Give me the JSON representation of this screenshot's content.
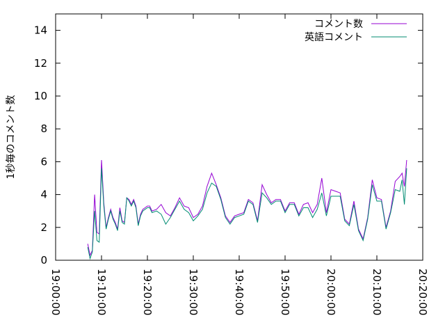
{
  "chart_data": {
    "type": "line",
    "ylabel": "1秒毎のコメント数",
    "xlabel": "",
    "title": "",
    "ylim": [
      0,
      15
    ],
    "y_ticks": [
      0,
      2,
      4,
      6,
      8,
      10,
      12,
      14
    ],
    "x_range": [
      "19:00:00",
      "20:20:00"
    ],
    "x_ticks": [
      "19:00:00",
      "19:10:00",
      "19:20:00",
      "19:30:00",
      "19:40:00",
      "19:50:00",
      "20:00:00",
      "20:10:00",
      "20:20:00"
    ],
    "x_tick_rotation": 90,
    "legend_position": "top-right",
    "grid": false,
    "series": [
      {
        "name": "コメント数",
        "color": "#9400d3",
        "x": [
          "19:07:00",
          "19:07:30",
          "19:08:00",
          "19:08:30",
          "19:09:00",
          "19:09:30",
          "19:10:00",
          "19:10:30",
          "19:11:00",
          "19:11:30",
          "19:12:00",
          "19:12:30",
          "19:13:00",
          "19:13:30",
          "19:14:00",
          "19:14:30",
          "19:15:00",
          "19:15:30",
          "19:16:00",
          "19:16:30",
          "19:17:00",
          "19:17:30",
          "19:18:00",
          "19:18:30",
          "19:19:00",
          "19:19:30",
          "19:20:00",
          "19:20:30",
          "19:21:00",
          "19:22:00",
          "19:23:00",
          "19:24:00",
          "19:25:00",
          "19:26:00",
          "19:27:00",
          "19:28:00",
          "19:29:00",
          "19:30:00",
          "19:31:00",
          "19:32:00",
          "19:33:00",
          "19:34:00",
          "19:35:00",
          "19:36:00",
          "19:37:00",
          "19:38:00",
          "19:39:00",
          "19:40:00",
          "19:41:00",
          "19:42:00",
          "19:43:00",
          "19:44:00",
          "19:45:00",
          "19:46:00",
          "19:47:00",
          "19:48:00",
          "19:49:00",
          "19:50:00",
          "19:51:00",
          "19:52:00",
          "19:53:00",
          "19:54:00",
          "19:55:00",
          "19:56:00",
          "19:57:00",
          "19:58:00",
          "19:59:00",
          "20:00:00",
          "20:01:00",
          "20:02:00",
          "20:03:00",
          "20:04:00",
          "20:05:00",
          "20:06:00",
          "20:07:00",
          "20:08:00",
          "20:09:00",
          "20:10:00",
          "20:11:00",
          "20:12:00",
          "20:13:00",
          "20:14:00",
          "20:15:00",
          "20:15:30",
          "20:16:00",
          "20:16:30"
        ],
        "values": [
          1.0,
          0.3,
          0.6,
          4.0,
          1.7,
          1.6,
          6.1,
          3.5,
          2.0,
          2.6,
          3.1,
          2.6,
          2.3,
          1.9,
          3.2,
          2.4,
          2.3,
          3.8,
          3.7,
          3.4,
          3.7,
          3.3,
          2.2,
          2.8,
          3.1,
          3.2,
          3.3,
          3.3,
          3.0,
          3.1,
          3.4,
          2.9,
          2.7,
          3.2,
          3.8,
          3.3,
          3.2,
          2.6,
          2.8,
          3.3,
          4.5,
          5.3,
          4.6,
          3.8,
          2.7,
          2.3,
          2.7,
          2.8,
          2.9,
          3.7,
          3.5,
          2.4,
          4.6,
          4.0,
          3.5,
          3.7,
          3.7,
          3.0,
          3.5,
          3.5,
          2.8,
          3.4,
          3.5,
          2.9,
          3.4,
          5.0,
          2.9,
          4.3,
          4.2,
          4.1,
          2.5,
          2.2,
          3.6,
          1.9,
          1.3,
          2.6,
          4.9,
          3.8,
          3.7,
          2.0,
          3.0,
          4.8,
          5.1,
          5.3,
          4.5,
          6.1
        ]
      },
      {
        "name": "英語コメント",
        "color": "#008b72",
        "x": [
          "19:07:00",
          "19:07:30",
          "19:08:00",
          "19:08:30",
          "19:09:00",
          "19:09:30",
          "19:10:00",
          "19:10:30",
          "19:11:00",
          "19:11:30",
          "19:12:00",
          "19:12:30",
          "19:13:00",
          "19:13:30",
          "19:14:00",
          "19:14:30",
          "19:15:00",
          "19:15:30",
          "19:16:00",
          "19:16:30",
          "19:17:00",
          "19:17:30",
          "19:18:00",
          "19:18:30",
          "19:19:00",
          "19:19:30",
          "19:20:00",
          "19:20:30",
          "19:21:00",
          "19:22:00",
          "19:23:00",
          "19:24:00",
          "19:25:00",
          "19:26:00",
          "19:27:00",
          "19:28:00",
          "19:29:00",
          "19:30:00",
          "19:31:00",
          "19:32:00",
          "19:33:00",
          "19:34:00",
          "19:35:00",
          "19:36:00",
          "19:37:00",
          "19:38:00",
          "19:39:00",
          "19:40:00",
          "19:41:00",
          "19:42:00",
          "19:43:00",
          "19:44:00",
          "19:45:00",
          "19:46:00",
          "19:47:00",
          "19:48:00",
          "19:49:00",
          "19:50:00",
          "19:51:00",
          "19:52:00",
          "19:53:00",
          "19:54:00",
          "19:55:00",
          "19:56:00",
          "19:57:00",
          "19:58:00",
          "19:59:00",
          "20:00:00",
          "20:01:00",
          "20:02:00",
          "20:03:00",
          "20:04:00",
          "20:05:00",
          "20:06:00",
          "20:07:00",
          "20:08:00",
          "20:09:00",
          "20:10:00",
          "20:11:00",
          "20:12:00",
          "20:13:00",
          "20:14:00",
          "20:15:00",
          "20:15:30",
          "20:16:00",
          "20:16:30"
        ],
        "values": [
          0.8,
          0.1,
          0.5,
          3.0,
          1.2,
          1.1,
          5.6,
          3.3,
          1.9,
          2.5,
          3.0,
          2.5,
          2.2,
          1.8,
          3.0,
          2.3,
          2.2,
          3.8,
          3.6,
          3.3,
          3.6,
          3.2,
          2.1,
          2.7,
          3.0,
          3.1,
          3.2,
          3.2,
          2.9,
          3.0,
          2.8,
          2.2,
          2.6,
          3.1,
          3.6,
          3.1,
          2.9,
          2.4,
          2.7,
          3.1,
          4.1,
          4.7,
          4.5,
          3.7,
          2.6,
          2.2,
          2.6,
          2.7,
          2.8,
          3.6,
          3.4,
          2.3,
          4.1,
          3.8,
          3.4,
          3.6,
          3.6,
          2.9,
          3.4,
          3.4,
          2.7,
          3.2,
          3.2,
          2.6,
          3.1,
          4.1,
          2.7,
          3.9,
          3.9,
          3.9,
          2.4,
          2.1,
          3.4,
          1.8,
          1.2,
          2.5,
          4.6,
          3.6,
          3.6,
          1.9,
          2.9,
          4.3,
          4.2,
          4.9,
          3.4,
          5.6
        ]
      }
    ]
  }
}
